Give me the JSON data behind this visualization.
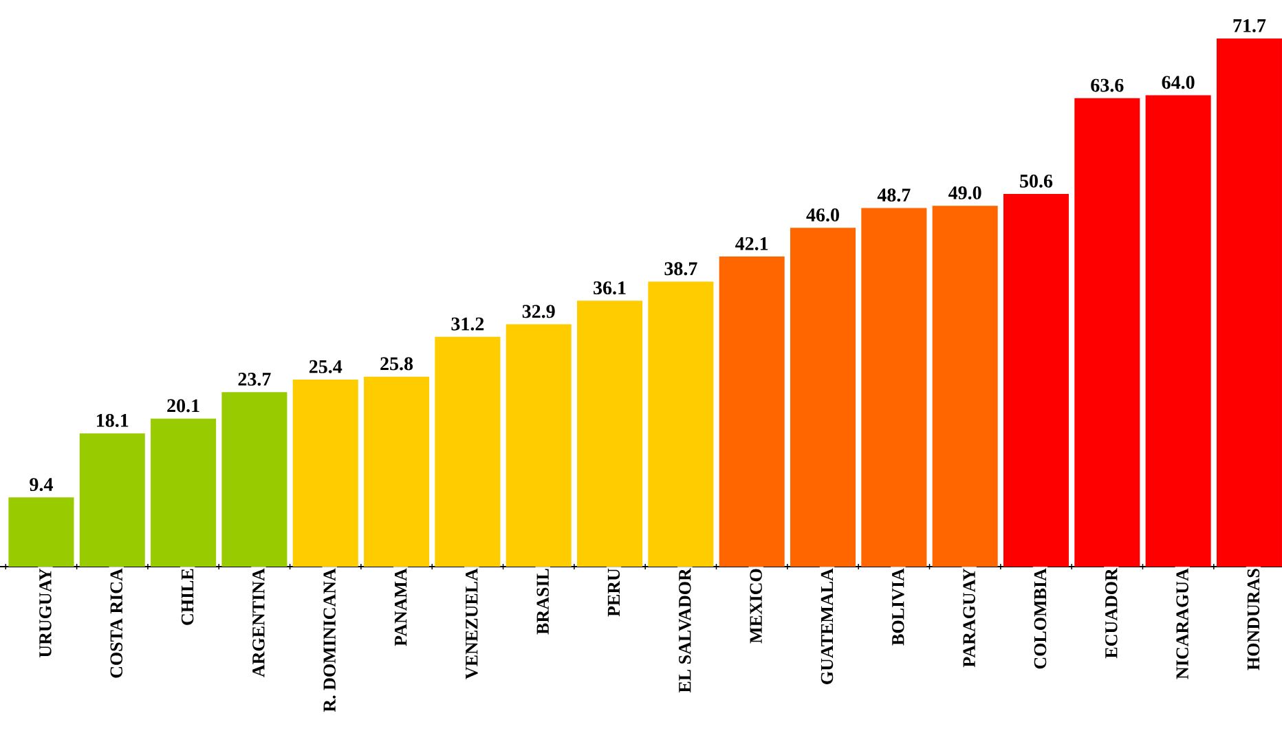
{
  "chart_data": {
    "type": "bar",
    "categories": [
      "URUGUAY",
      "COSTA RICA",
      "CHILE",
      "ARGENTINA",
      "R. DOMINICANA",
      "PANAMA",
      "VENEZUELA",
      "BRASIL",
      "PERU",
      "EL SALVADOR",
      "MEXICO",
      "GUATEMALA",
      "BOLIVIA",
      "PARAGUAY",
      "COLOMBIA",
      "ECUADOR",
      "NICARAGUA",
      "HONDURAS"
    ],
    "values": [
      9.4,
      18.1,
      20.1,
      23.7,
      25.4,
      25.8,
      31.2,
      32.9,
      36.1,
      38.7,
      42.1,
      46.0,
      48.7,
      49.0,
      50.6,
      63.6,
      64.0,
      71.7
    ],
    "value_labels": [
      "9.4",
      "18.1",
      "20.1",
      "23.7",
      "25.4",
      "25.8",
      "31.2",
      "32.9",
      "36.1",
      "38.7",
      "42.1",
      "46.0",
      "48.7",
      "49.0",
      "50.6",
      "63.6",
      "64.0",
      "71.7"
    ],
    "colors": [
      "#99cc00",
      "#99cc00",
      "#99cc00",
      "#99cc00",
      "#ffcc00",
      "#ffcc00",
      "#ffcc00",
      "#ffcc00",
      "#ffcc00",
      "#ffcc00",
      "#ff6600",
      "#ff6600",
      "#ff6600",
      "#ff6600",
      "#ff0000",
      "#ff0000",
      "#ff0000",
      "#ff0000"
    ],
    "tick_labels": "x"
  }
}
